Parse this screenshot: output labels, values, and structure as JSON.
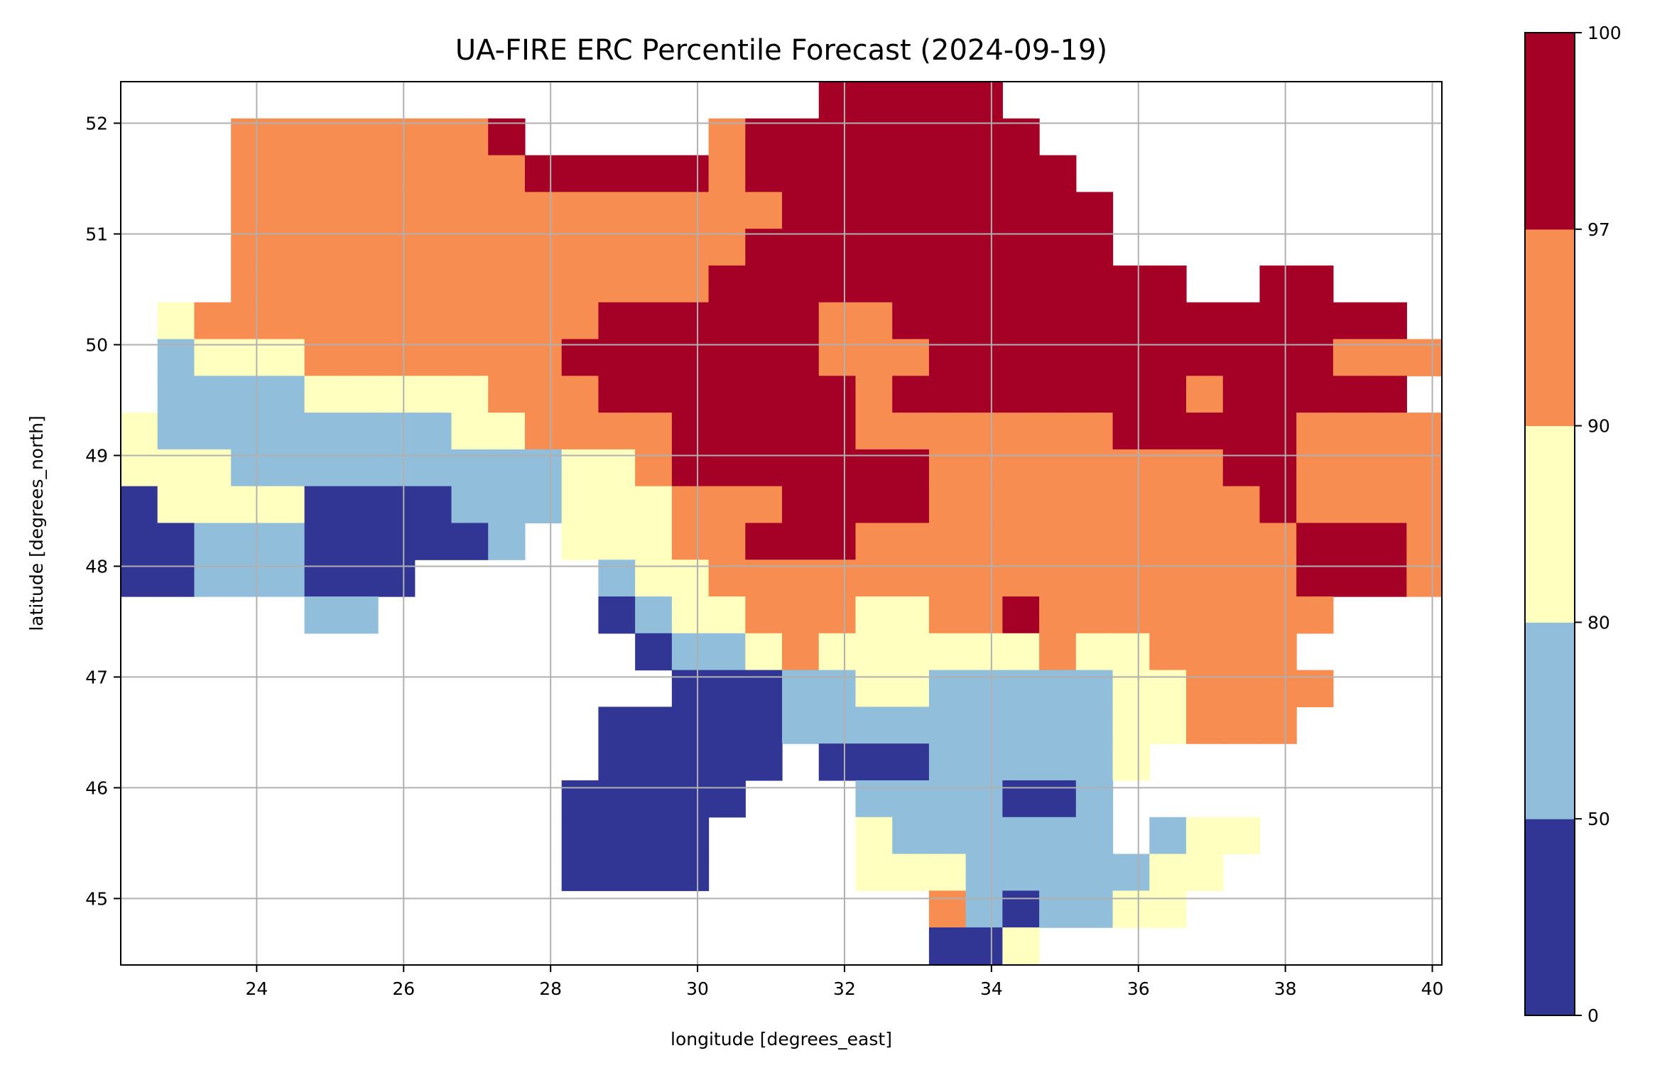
{
  "chart_data": {
    "type": "heatmap",
    "title": "UA-FIRE ERC Percentile Forecast (2024-09-19)",
    "xlabel": "longitude [degrees_east]",
    "ylabel": "latitude [degrees_north]",
    "xlim": [
      22.15,
      40.13
    ],
    "ylim": [
      44.4,
      52.375
    ],
    "xticks": [
      "24",
      "26",
      "28",
      "30",
      "32",
      "34",
      "36",
      "38",
      "40"
    ],
    "yticks": [
      "45",
      "46",
      "47",
      "48",
      "49",
      "50",
      "51",
      "52"
    ],
    "grid": true,
    "grid_cell_lon": 0.5,
    "grid_cell_lat": 0.332,
    "legend": {
      "type": "colorbar",
      "placement": "right",
      "bounds": [
        "0",
        "50",
        "80",
        "90",
        "97",
        "100"
      ],
      "colors": [
        "#313695",
        "#91bfdb",
        "#ffffbf",
        "#f88d52",
        "#a50026"
      ]
    },
    "category_legend": {
      "0": "0-50",
      "1": "50-80",
      "2": "80-90",
      "3": "90-97",
      "4": "97-100",
      ".": "no data"
    },
    "rows_north_to_south": [
      "...................44444............",
      "...33333334.....344444444...........",
      "...33333333444443444444444..........",
      "...333333333333333444444444.........",
      "...333333333333334444444444.........",
      "...33333333333334444444444444..44....",
      ".2333333333334444443344444444444444...",
      ".12223333333444444433344444444444333",
      ".1111222223334444444344444444344444",
      "21111111122333344444333333344444333 3",
      "22211111111122344444443333333344 3333",
      "022220000111222333444433333333343333",
      "00111000001.22233444333333333333 4443",
      "00111000.....12233333333333333334443",
      ".....11......0122333223343333333 3...",
      "..............01123222222322 3333...",
      "...............0001122111112233 33...",
      ".............000001111111112233 3....",
      ".............00000.0001111128........",
      "............00000...11110 01.........",
      "............0000....21111 11.122.....",
      "............0000....222111 1122......",
      "......................31011 22.......",
      "......................002..........."
    ]
  }
}
